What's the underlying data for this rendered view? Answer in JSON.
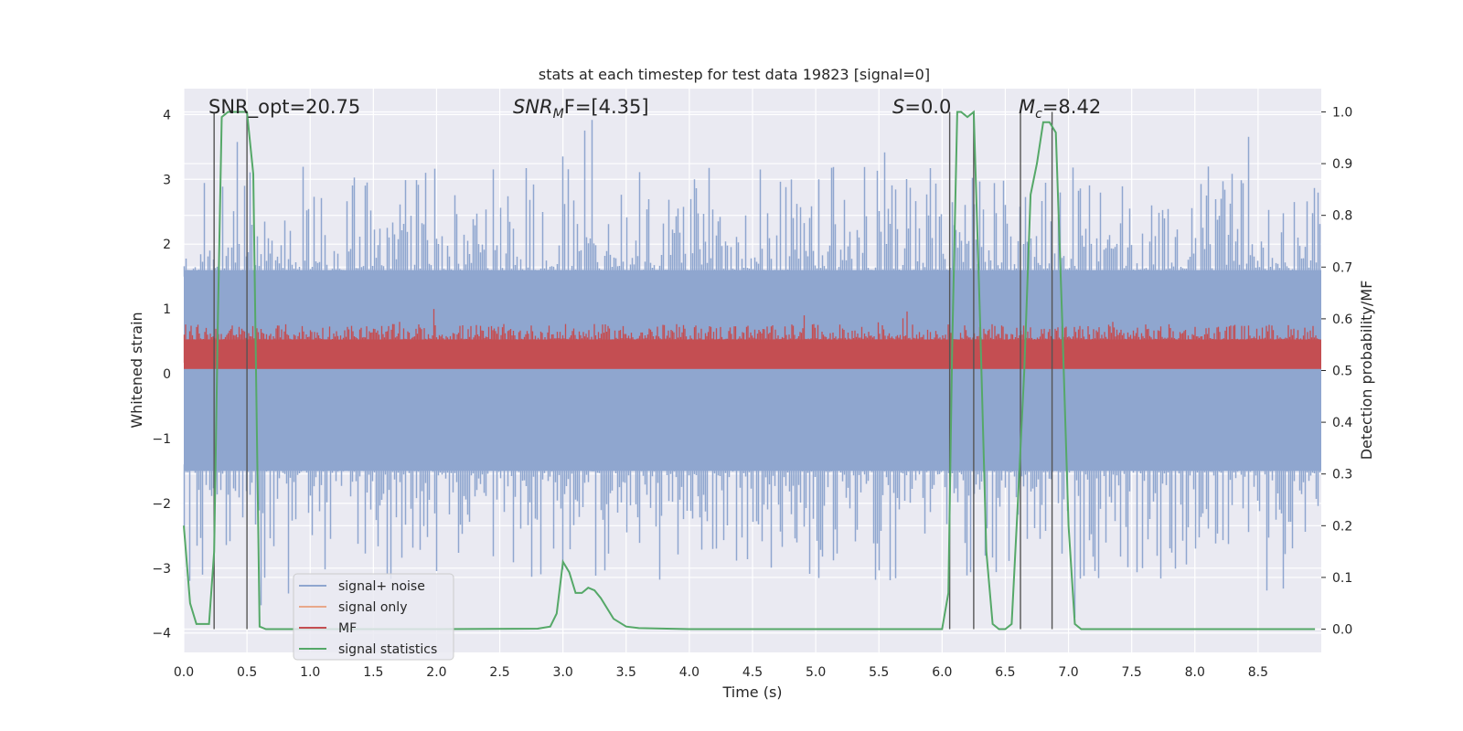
{
  "chart_data": {
    "type": "line",
    "title": "stats at each timestep for test data 19823 [signal=0]",
    "xlabel": "Time (s)",
    "ylabel_left": "Whitened strain",
    "ylabel_right": "Detection probability/MF",
    "xlim": [
      0,
      9.0
    ],
    "ylim_left": [
      -4.3,
      4.4
    ],
    "ylim_right": [
      -0.045,
      1.045
    ],
    "x_ticks": [
      "0.0",
      "0.5",
      "1.0",
      "1.5",
      "2.0",
      "2.5",
      "3.0",
      "3.5",
      "4.0",
      "4.5",
      "5.0",
      "5.5",
      "6.0",
      "6.5",
      "7.0",
      "7.5",
      "8.0",
      "8.5"
    ],
    "y_ticks_left": [
      "4",
      "3",
      "2",
      "1",
      "0",
      "−1",
      "−2",
      "−3",
      "−4"
    ],
    "y_ticks_right": [
      "1.0",
      "0.9",
      "0.8",
      "0.7",
      "0.6",
      "0.5",
      "0.4",
      "0.3",
      "0.2",
      "0.1",
      "0.0"
    ],
    "grid": true,
    "legend_position": "lower-left",
    "annotations": {
      "snr_opt": "SNR_opt=20.75",
      "snr_mf_a": "SNR",
      "snr_mf_sub": "M",
      "snr_mf_b": "F=[4.35]",
      "s_a": "S",
      "s_b": "=0.0",
      "mc_a": "M",
      "mc_sub": "c",
      "mc_b": "=8.42"
    },
    "vertical_lines_x": [
      0.24,
      0.5,
      6.06,
      6.25,
      6.62,
      6.87
    ],
    "series": [
      {
        "name": "signal+ noise",
        "color": "#8fa6cf",
        "band_left": [
          -1.5,
          1.6
        ],
        "spike_max_left": 4.0,
        "spike_min_left": -3.9
      },
      {
        "name": "signal only",
        "color": "#e8a88a"
      },
      {
        "name": "MF",
        "color": "#c44e52",
        "band_right": [
          0.51,
          0.56
        ],
        "spike_max_right": 0.62
      },
      {
        "name": "signal statistics",
        "color": "#55a868",
        "axis": "right",
        "x": [
          0.0,
          0.05,
          0.1,
          0.15,
          0.2,
          0.24,
          0.27,
          0.3,
          0.35,
          0.4,
          0.45,
          0.5,
          0.55,
          0.6,
          0.65,
          0.7,
          1.0,
          2.0,
          2.8,
          2.9,
          2.95,
          3.0,
          3.05,
          3.1,
          3.15,
          3.2,
          3.25,
          3.3,
          3.4,
          3.5,
          3.6,
          4.0,
          5.0,
          6.0,
          6.05,
          6.08,
          6.12,
          6.15,
          6.2,
          6.25,
          6.3,
          6.35,
          6.4,
          6.45,
          6.5,
          6.55,
          6.6,
          6.65,
          6.7,
          6.75,
          6.8,
          6.85,
          6.9,
          6.95,
          7.0,
          7.05,
          7.1,
          7.15,
          7.5,
          8.0,
          8.5,
          8.95
        ],
        "y": [
          0.2,
          0.05,
          0.01,
          0.01,
          0.01,
          0.15,
          0.6,
          0.99,
          1.0,
          1.0,
          1.0,
          1.0,
          0.88,
          0.005,
          0.0,
          0.0,
          0.0,
          0.0,
          0.001,
          0.005,
          0.03,
          0.13,
          0.11,
          0.07,
          0.07,
          0.08,
          0.075,
          0.06,
          0.02,
          0.005,
          0.002,
          0.0,
          0.0,
          0.0,
          0.07,
          0.55,
          1.0,
          1.0,
          0.99,
          1.0,
          0.6,
          0.15,
          0.01,
          0.0,
          0.0,
          0.01,
          0.25,
          0.5,
          0.84,
          0.9,
          0.98,
          0.98,
          0.96,
          0.6,
          0.2,
          0.01,
          0.0,
          0.0,
          0.0,
          0.0,
          0.0,
          0.0
        ]
      }
    ]
  }
}
